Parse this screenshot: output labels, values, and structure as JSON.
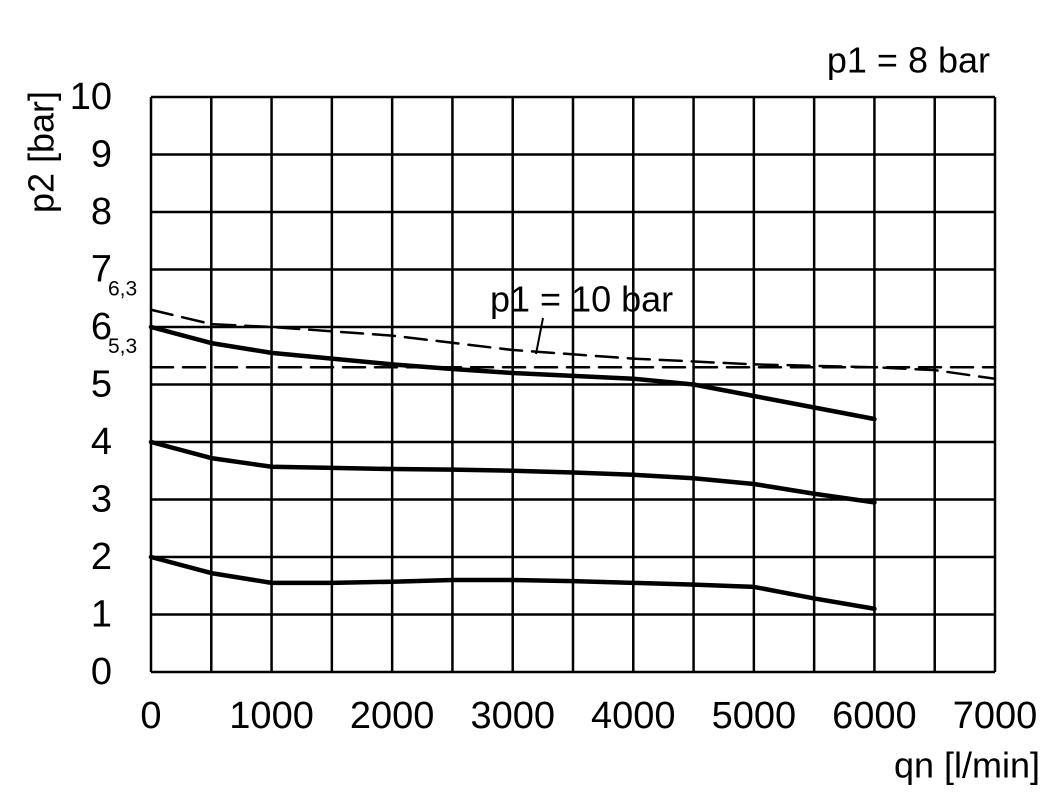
{
  "chart_data": {
    "type": "line",
    "subtitle": "p1 = 8 bar",
    "xlabel": "qn [l/min]",
    "ylabel": "p2 [bar]",
    "xlim": [
      0,
      7000
    ],
    "ylim": [
      0,
      10
    ],
    "xticks": [
      0,
      1000,
      2000,
      3000,
      4000,
      5000,
      6000,
      7000
    ],
    "xminor": [
      500,
      1500,
      2500,
      3500,
      4500,
      5500,
      6500
    ],
    "yticks": [
      0,
      1,
      2,
      3,
      4,
      5,
      6,
      7,
      8,
      9,
      10
    ],
    "grid": true,
    "series": [
      {
        "color": "#000000",
        "dash": false,
        "x": [
          0,
          500,
          1000,
          1500,
          2000,
          2500,
          3000,
          3500,
          4000,
          4500,
          5000,
          5500,
          6000
        ],
        "values": [
          6.0,
          5.72,
          5.55,
          5.45,
          5.35,
          5.27,
          5.2,
          5.15,
          5.1,
          5.0,
          4.8,
          4.6,
          4.4
        ]
      },
      {
        "color": "#000000",
        "dash": false,
        "x": [
          0,
          500,
          1000,
          1500,
          2000,
          2500,
          3000,
          3500,
          4000,
          4500,
          5000,
          5500,
          6000
        ],
        "values": [
          4.0,
          3.72,
          3.57,
          3.55,
          3.53,
          3.52,
          3.5,
          3.47,
          3.43,
          3.37,
          3.27,
          3.1,
          2.95
        ]
      },
      {
        "color": "#000000",
        "dash": false,
        "x": [
          0,
          500,
          1000,
          1500,
          2000,
          2500,
          3000,
          3500,
          4000,
          4500,
          5000,
          5500,
          6000
        ],
        "values": [
          2.0,
          1.72,
          1.55,
          1.55,
          1.57,
          1.6,
          1.6,
          1.58,
          1.55,
          1.52,
          1.48,
          1.28,
          1.1
        ]
      },
      {
        "color": "#000000",
        "dash": true,
        "label": "p1 = 10 bar",
        "x": [
          0,
          500,
          1000,
          2000,
          3000,
          4000,
          5000,
          6000,
          6500,
          7000
        ],
        "values": [
          6.3,
          6.05,
          6.0,
          5.85,
          5.6,
          5.45,
          5.35,
          5.3,
          5.25,
          5.1
        ],
        "value_labels": [
          "6,3",
          null,
          null,
          null,
          null,
          null,
          null,
          null,
          null,
          null
        ]
      },
      {
        "color": "#000000",
        "dash": true,
        "x": [
          0,
          7000
        ],
        "values": [
          5.3,
          5.3
        ],
        "value_labels": [
          "5,3",
          null
        ]
      }
    ]
  }
}
